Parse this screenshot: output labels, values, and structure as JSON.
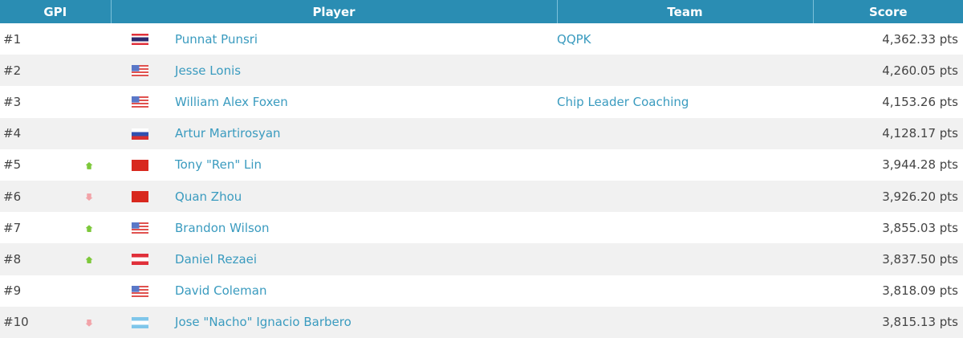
{
  "headers": {
    "gpi": "GPI",
    "player": "Player",
    "team": "Team",
    "score": "Score"
  },
  "colors": {
    "header": "#2a8db3",
    "link": "#3a9bbf",
    "up": "#7dc83a",
    "down": "#f2a3a8"
  },
  "rows": [
    {
      "rank": "#1",
      "trend": "none",
      "flag": "thailand",
      "player": "Punnat Punsri",
      "team": "QQPK",
      "score": "4,362.33 pts"
    },
    {
      "rank": "#2",
      "trend": "none",
      "flag": "usa",
      "player": "Jesse Lonis",
      "team": "",
      "score": "4,260.05 pts"
    },
    {
      "rank": "#3",
      "trend": "none",
      "flag": "usa",
      "player": "William Alex Foxen",
      "team": "Chip Leader Coaching",
      "score": "4,153.26 pts"
    },
    {
      "rank": "#4",
      "trend": "none",
      "flag": "russia",
      "player": "Artur Martirosyan",
      "team": "",
      "score": "4,128.17 pts"
    },
    {
      "rank": "#5",
      "trend": "up",
      "flag": "china",
      "player": "Tony \"Ren\" Lin",
      "team": "",
      "score": "3,944.28 pts"
    },
    {
      "rank": "#6",
      "trend": "down",
      "flag": "china",
      "player": "Quan Zhou",
      "team": "",
      "score": "3,926.20 pts"
    },
    {
      "rank": "#7",
      "trend": "up",
      "flag": "usa",
      "player": "Brandon Wilson",
      "team": "",
      "score": "3,855.03 pts"
    },
    {
      "rank": "#8",
      "trend": "up",
      "flag": "austria",
      "player": "Daniel Rezaei",
      "team": "",
      "score": "3,837.50 pts"
    },
    {
      "rank": "#9",
      "trend": "none",
      "flag": "usa",
      "player": "David Coleman",
      "team": "",
      "score": "3,818.09 pts"
    },
    {
      "rank": "#10",
      "trend": "down",
      "flag": "argentina",
      "player": "Jose \"Nacho\" Ignacio Barbero",
      "team": "",
      "score": "3,815.13 pts"
    }
  ]
}
